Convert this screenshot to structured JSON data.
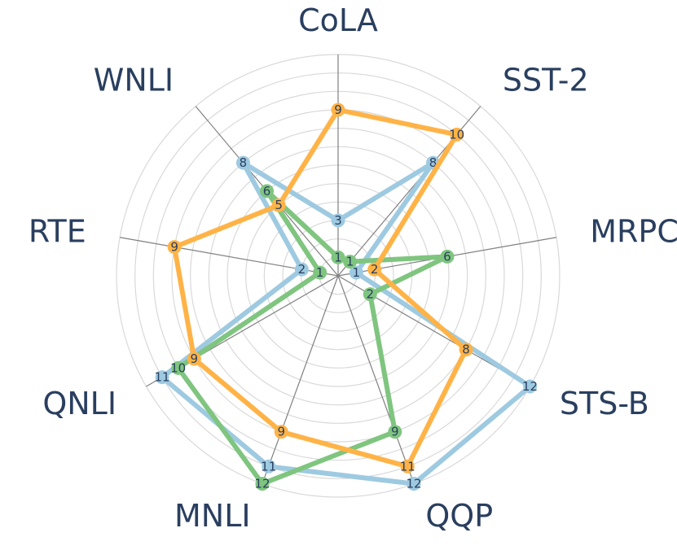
{
  "chart_data": {
    "type": "radar",
    "categories": [
      "CoLA",
      "SST-2",
      "MRPC",
      "STS-B",
      "QQP",
      "MNLI",
      "QNLI",
      "RTE",
      "WNLI"
    ],
    "rlim": [
      0,
      12
    ],
    "grid": true,
    "series": [
      {
        "color": "#9ecae1",
        "values": [
          3,
          8,
          1,
          12,
          12,
          11,
          11,
          2,
          8
        ]
      },
      {
        "color": "#7fc57f",
        "values": [
          1,
          1,
          6,
          2,
          9,
          12,
          10,
          1,
          6
        ]
      },
      {
        "color": "#ffb347",
        "values": [
          9,
          10,
          2,
          8,
          11,
          9,
          9,
          9,
          5
        ]
      }
    ]
  }
}
